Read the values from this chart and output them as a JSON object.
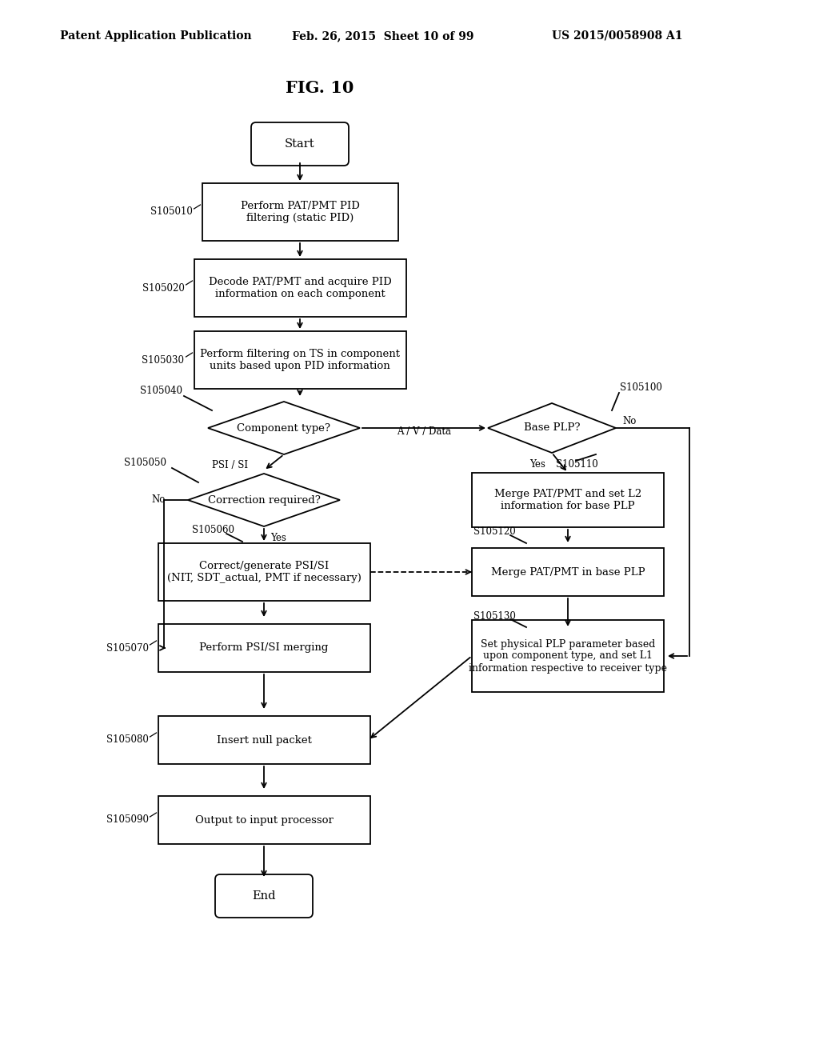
{
  "bg_color": "#ffffff",
  "header_left": "Patent Application Publication",
  "header_center": "Feb. 26, 2015  Sheet 10 of 99",
  "header_right": "US 2015/0058908 A1",
  "title": "FIG. 10",
  "fig_w": 10.24,
  "fig_h": 13.2,
  "dpi": 100,
  "start_text": "Start",
  "end_text": "End",
  "s105010_text": "Perform PAT/PMT PID\nfiltering (static PID)",
  "s105020_text": "Decode PAT/PMT and acquire PID\ninformation on each component",
  "s105030_text": "Perform filtering on TS in component\nunits based upon PID information",
  "s105040_text": "Component type?",
  "s105100_text": "Base PLP?",
  "s105050_text": "Correction required?",
  "s105110_text": "Merge PAT/PMT and set L2\ninformation for base PLP",
  "s105060_text": "Correct/generate PSI/SI\n(NIT, SDT_actual, PMT if necessary)",
  "s105120_text": "Merge PAT/PMT in base PLP",
  "s105070_text": "Perform PSI/SI merging",
  "s105130_text": "Set physical PLP parameter based\nupon component type, and set L1\ninformation respective to receiver type",
  "s105080_text": "Insert null packet",
  "s105090_text": "Output to input processor"
}
